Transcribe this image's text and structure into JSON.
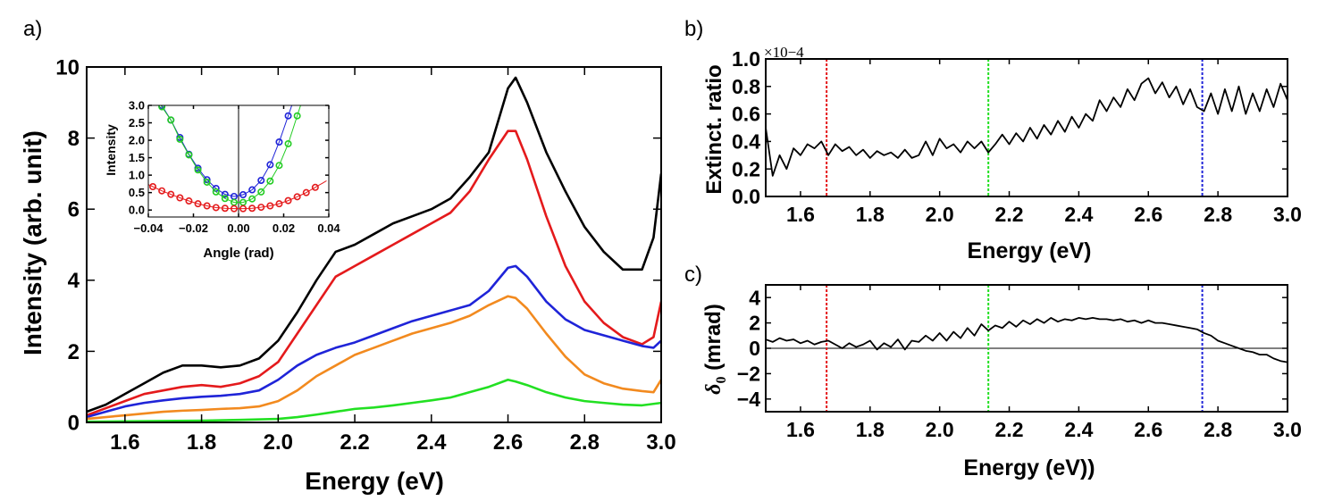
{
  "panel_labels": {
    "a": "a)",
    "b": "b)",
    "c": "c)"
  },
  "chart_data": [
    {
      "id": "a",
      "type": "line",
      "xlabel": "Energy (eV)",
      "ylabel": "Intensity (arb. unit)",
      "xlim": [
        1.5,
        3.0
      ],
      "ylim": [
        0,
        10
      ],
      "xticks": [
        "1.6",
        "1.8",
        "2.0",
        "2.2",
        "2.4",
        "2.6",
        "2.8",
        "3.0"
      ],
      "yticks": [
        "0",
        "2",
        "4",
        "6",
        "8",
        "10"
      ],
      "grid": false,
      "series": [
        {
          "color": "#000000",
          "x": [
            1.5,
            1.55,
            1.6,
            1.65,
            1.7,
            1.75,
            1.8,
            1.85,
            1.9,
            1.95,
            2.0,
            2.05,
            2.1,
            2.15,
            2.2,
            2.25,
            2.3,
            2.35,
            2.4,
            2.45,
            2.5,
            2.55,
            2.6,
            2.62,
            2.65,
            2.7,
            2.75,
            2.8,
            2.85,
            2.9,
            2.95,
            2.98,
            3.0
          ],
          "y": [
            0.3,
            0.5,
            0.8,
            1.1,
            1.4,
            1.6,
            1.6,
            1.55,
            1.6,
            1.8,
            2.3,
            3.1,
            4.0,
            4.8,
            5.0,
            5.3,
            5.6,
            5.8,
            6.0,
            6.3,
            6.9,
            7.6,
            9.4,
            9.7,
            9.0,
            7.6,
            6.5,
            5.5,
            4.8,
            4.3,
            4.3,
            5.2,
            7.0
          ]
        },
        {
          "color": "#e41a1c",
          "x": [
            1.5,
            1.55,
            1.6,
            1.65,
            1.7,
            1.75,
            1.8,
            1.85,
            1.9,
            1.95,
            2.0,
            2.05,
            2.1,
            2.15,
            2.2,
            2.25,
            2.3,
            2.35,
            2.4,
            2.45,
            2.5,
            2.55,
            2.6,
            2.62,
            2.65,
            2.7,
            2.75,
            2.8,
            2.85,
            2.9,
            2.95,
            2.98,
            3.0
          ],
          "y": [
            0.2,
            0.4,
            0.6,
            0.8,
            0.9,
            1.0,
            1.05,
            1.0,
            1.1,
            1.3,
            1.7,
            2.5,
            3.3,
            4.1,
            4.4,
            4.7,
            5.0,
            5.3,
            5.6,
            5.9,
            6.5,
            7.4,
            8.2,
            8.2,
            7.4,
            5.8,
            4.4,
            3.4,
            2.8,
            2.4,
            2.2,
            2.4,
            3.4
          ]
        },
        {
          "color": "#1f24d8",
          "x": [
            1.5,
            1.55,
            1.6,
            1.65,
            1.7,
            1.75,
            1.8,
            1.85,
            1.9,
            1.95,
            2.0,
            2.05,
            2.1,
            2.15,
            2.2,
            2.25,
            2.3,
            2.35,
            2.4,
            2.45,
            2.5,
            2.55,
            2.6,
            2.62,
            2.65,
            2.7,
            2.75,
            2.8,
            2.85,
            2.9,
            2.95,
            2.98,
            3.0
          ],
          "y": [
            0.15,
            0.3,
            0.45,
            0.55,
            0.62,
            0.68,
            0.72,
            0.75,
            0.8,
            0.9,
            1.2,
            1.6,
            1.9,
            2.1,
            2.25,
            2.45,
            2.65,
            2.85,
            3.0,
            3.15,
            3.3,
            3.7,
            4.35,
            4.4,
            4.1,
            3.4,
            2.9,
            2.6,
            2.45,
            2.3,
            2.15,
            2.1,
            2.3
          ]
        },
        {
          "color": "#f28a1f",
          "x": [
            1.5,
            1.55,
            1.6,
            1.65,
            1.7,
            1.75,
            1.8,
            1.85,
            1.9,
            1.95,
            2.0,
            2.05,
            2.1,
            2.15,
            2.2,
            2.25,
            2.3,
            2.35,
            2.4,
            2.45,
            2.5,
            2.55,
            2.6,
            2.62,
            2.65,
            2.7,
            2.75,
            2.8,
            2.85,
            2.9,
            2.95,
            2.98,
            3.0
          ],
          "y": [
            0.1,
            0.15,
            0.2,
            0.25,
            0.3,
            0.33,
            0.35,
            0.38,
            0.4,
            0.45,
            0.6,
            0.9,
            1.3,
            1.6,
            1.9,
            2.1,
            2.3,
            2.5,
            2.65,
            2.8,
            3.0,
            3.3,
            3.55,
            3.5,
            3.2,
            2.5,
            1.85,
            1.35,
            1.1,
            0.95,
            0.88,
            0.85,
            1.2
          ]
        },
        {
          "color": "#22e022",
          "x": [
            1.5,
            1.6,
            1.7,
            1.8,
            1.9,
            2.0,
            2.05,
            2.1,
            2.15,
            2.2,
            2.25,
            2.3,
            2.35,
            2.4,
            2.45,
            2.5,
            2.55,
            2.6,
            2.62,
            2.65,
            2.7,
            2.75,
            2.8,
            2.85,
            2.9,
            2.95,
            3.0
          ],
          "y": [
            0.02,
            0.03,
            0.04,
            0.05,
            0.07,
            0.1,
            0.15,
            0.22,
            0.3,
            0.38,
            0.42,
            0.48,
            0.55,
            0.62,
            0.7,
            0.85,
            1.0,
            1.2,
            1.15,
            1.05,
            0.85,
            0.7,
            0.6,
            0.55,
            0.5,
            0.48,
            0.55
          ]
        }
      ]
    },
    {
      "id": "a-inset",
      "type": "scatter",
      "xlabel": "Angle (rad)",
      "ylabel": "Intensity",
      "xlim": [
        -0.04,
        0.04
      ],
      "ylim": [
        -0.2,
        3.0
      ],
      "xticks": [
        "−0.04",
        "−0.02",
        "0.00",
        "0.02",
        "0.04"
      ],
      "yticks": [
        "0.0",
        "0.5",
        "1.0",
        "1.5",
        "2.0",
        "2.5",
        "3.0"
      ],
      "series": [
        {
          "color": "#1f24d8",
          "x": [
            -0.034,
            -0.03,
            -0.026,
            -0.022,
            -0.018,
            -0.014,
            -0.01,
            -0.006,
            -0.002,
            0.002,
            0.006,
            0.01,
            0.014,
            0.018,
            0.022
          ],
          "y": [
            3.0,
            2.58,
            2.08,
            1.6,
            1.2,
            0.87,
            0.62,
            0.45,
            0.39,
            0.44,
            0.58,
            0.85,
            1.3,
            1.95,
            2.7
          ]
        },
        {
          "color": "#22cc22",
          "x": [
            -0.034,
            -0.03,
            -0.026,
            -0.022,
            -0.018,
            -0.014,
            -0.01,
            -0.006,
            -0.002,
            0.002,
            0.006,
            0.01,
            0.014,
            0.018,
            0.022,
            0.026
          ],
          "y": [
            2.96,
            2.58,
            2.03,
            1.58,
            1.15,
            0.8,
            0.52,
            0.33,
            0.22,
            0.22,
            0.32,
            0.52,
            0.83,
            1.28,
            1.9,
            2.7
          ]
        },
        {
          "color": "#e41a1c",
          "x": [
            -0.038,
            -0.034,
            -0.03,
            -0.026,
            -0.022,
            -0.018,
            -0.014,
            -0.01,
            -0.006,
            -0.002,
            0.002,
            0.006,
            0.01,
            0.014,
            0.018,
            0.022,
            0.026,
            0.03,
            0.034
          ],
          "y": [
            0.67,
            0.55,
            0.45,
            0.35,
            0.26,
            0.18,
            0.12,
            0.07,
            0.05,
            0.04,
            0.04,
            0.05,
            0.08,
            0.12,
            0.18,
            0.27,
            0.38,
            0.5,
            0.65
          ]
        }
      ]
    },
    {
      "id": "b",
      "type": "line",
      "xlabel": "Energy (eV)",
      "ylabel": "Extinct. ratio",
      "multiplier": "×10−4",
      "xlim": [
        1.5,
        3.0
      ],
      "ylim": [
        0.0,
        1.0
      ],
      "xticks": [
        "1.6",
        "1.8",
        "2.0",
        "2.2",
        "2.4",
        "2.6",
        "2.8",
        "3.0"
      ],
      "yticks": [
        "0.0",
        "0.2",
        "0.4",
        "0.6",
        "0.8",
        "1.0"
      ],
      "vlines": [
        {
          "x": 1.675,
          "color": "#e41a1c"
        },
        {
          "x": 2.14,
          "color": "#22e022"
        },
        {
          "x": 2.755,
          "color": "#1f24d8"
        }
      ],
      "series": [
        {
          "color": "#000000",
          "x": [
            1.5,
            1.52,
            1.54,
            1.56,
            1.58,
            1.6,
            1.62,
            1.64,
            1.66,
            1.68,
            1.7,
            1.72,
            1.74,
            1.76,
            1.78,
            1.8,
            1.82,
            1.84,
            1.86,
            1.88,
            1.9,
            1.92,
            1.94,
            1.96,
            1.98,
            2.0,
            2.02,
            2.04,
            2.06,
            2.08,
            2.1,
            2.12,
            2.14,
            2.16,
            2.18,
            2.2,
            2.22,
            2.24,
            2.26,
            2.28,
            2.3,
            2.32,
            2.34,
            2.36,
            2.38,
            2.4,
            2.42,
            2.44,
            2.46,
            2.48,
            2.5,
            2.52,
            2.54,
            2.56,
            2.58,
            2.6,
            2.62,
            2.64,
            2.66,
            2.68,
            2.7,
            2.72,
            2.74,
            2.76,
            2.78,
            2.8,
            2.82,
            2.84,
            2.86,
            2.88,
            2.9,
            2.92,
            2.94,
            2.96,
            2.98,
            3.0
          ],
          "y": [
            0.5,
            0.15,
            0.3,
            0.2,
            0.35,
            0.3,
            0.38,
            0.35,
            0.4,
            0.3,
            0.38,
            0.33,
            0.36,
            0.3,
            0.34,
            0.28,
            0.33,
            0.3,
            0.32,
            0.28,
            0.34,
            0.28,
            0.3,
            0.4,
            0.3,
            0.42,
            0.35,
            0.38,
            0.32,
            0.4,
            0.35,
            0.4,
            0.32,
            0.38,
            0.45,
            0.38,
            0.46,
            0.4,
            0.5,
            0.42,
            0.52,
            0.45,
            0.55,
            0.47,
            0.58,
            0.5,
            0.6,
            0.55,
            0.7,
            0.62,
            0.72,
            0.65,
            0.78,
            0.7,
            0.82,
            0.86,
            0.75,
            0.83,
            0.72,
            0.8,
            0.67,
            0.78,
            0.65,
            0.62,
            0.75,
            0.6,
            0.78,
            0.62,
            0.8,
            0.6,
            0.75,
            0.62,
            0.78,
            0.65,
            0.82,
            0.7
          ]
        }
      ]
    },
    {
      "id": "c",
      "type": "line",
      "xlabel": "Energy (eV))",
      "ylabel": "δ0 (mrad)",
      "xlim": [
        1.5,
        3.0
      ],
      "ylim": [
        -5,
        5
      ],
      "xticks": [
        "1.6",
        "1.8",
        "2.0",
        "2.2",
        "2.4",
        "2.6",
        "2.8",
        "3.0"
      ],
      "yticks": [
        "−4",
        "−2",
        "0",
        "2",
        "4"
      ],
      "hline": 0,
      "vlines": [
        {
          "x": 1.675,
          "color": "#e41a1c"
        },
        {
          "x": 2.14,
          "color": "#22e022"
        },
        {
          "x": 2.755,
          "color": "#1f24d8"
        }
      ],
      "series": [
        {
          "color": "#000000",
          "x": [
            1.5,
            1.52,
            1.54,
            1.56,
            1.58,
            1.6,
            1.62,
            1.64,
            1.66,
            1.68,
            1.7,
            1.72,
            1.74,
            1.76,
            1.78,
            1.8,
            1.82,
            1.84,
            1.86,
            1.88,
            1.9,
            1.92,
            1.94,
            1.96,
            1.98,
            2.0,
            2.02,
            2.04,
            2.06,
            2.08,
            2.1,
            2.12,
            2.14,
            2.16,
            2.18,
            2.2,
            2.22,
            2.24,
            2.26,
            2.28,
            2.3,
            2.32,
            2.34,
            2.36,
            2.38,
            2.4,
            2.42,
            2.44,
            2.46,
            2.48,
            2.5,
            2.52,
            2.54,
            2.56,
            2.58,
            2.6,
            2.62,
            2.64,
            2.66,
            2.68,
            2.7,
            2.72,
            2.74,
            2.76,
            2.78,
            2.8,
            2.82,
            2.84,
            2.86,
            2.88,
            2.9,
            2.92,
            2.94,
            2.96,
            2.98,
            3.0
          ],
          "y": [
            0.7,
            0.5,
            0.8,
            0.6,
            0.7,
            0.4,
            0.6,
            0.3,
            0.5,
            0.6,
            0.3,
            0.0,
            0.4,
            0.1,
            0.3,
            0.6,
            -0.1,
            0.4,
            0.1,
            0.7,
            -0.1,
            0.6,
            0.5,
            1.0,
            0.6,
            1.2,
            0.6,
            1.3,
            0.8,
            1.6,
            1.0,
            1.9,
            1.4,
            1.8,
            1.6,
            2.1,
            1.7,
            2.2,
            1.9,
            2.3,
            2.0,
            2.4,
            2.1,
            2.3,
            2.2,
            2.4,
            2.3,
            2.4,
            2.3,
            2.3,
            2.2,
            2.3,
            2.1,
            2.2,
            2.0,
            2.2,
            2.0,
            2.0,
            1.9,
            1.8,
            1.7,
            1.6,
            1.5,
            1.2,
            1.0,
            0.6,
            0.4,
            0.2,
            0.0,
            -0.2,
            -0.3,
            -0.5,
            -0.5,
            -0.8,
            -1.0,
            -1.1
          ]
        }
      ]
    }
  ]
}
